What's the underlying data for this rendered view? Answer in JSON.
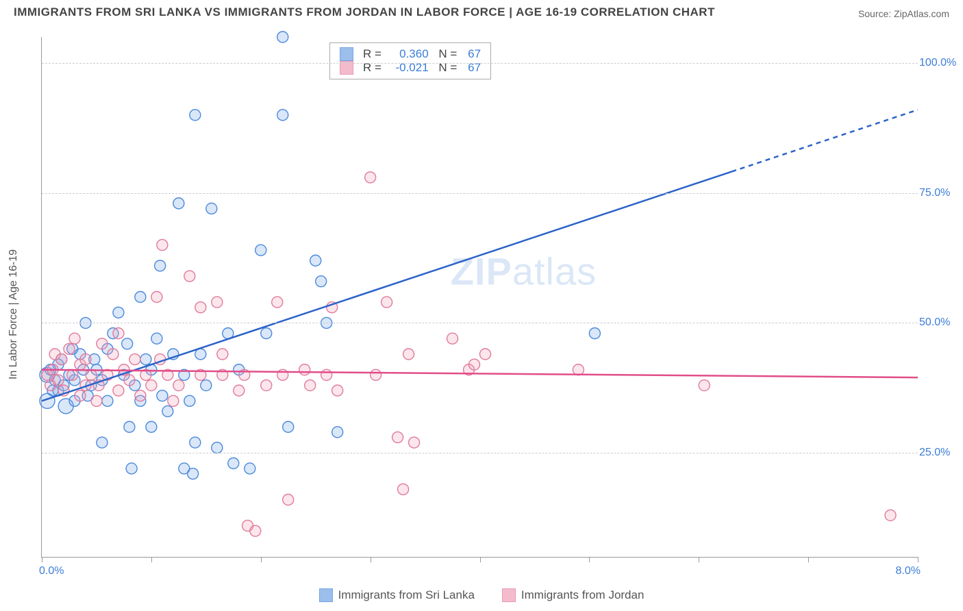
{
  "title": "IMMIGRANTS FROM SRI LANKA VS IMMIGRANTS FROM JORDAN IN LABOR FORCE | AGE 16-19 CORRELATION CHART",
  "source": "Source: ZipAtlas.com",
  "watermark": {
    "zip": "ZIP",
    "atlas": "atlas"
  },
  "y_axis_label": "In Labor Force | Age 16-19",
  "chart": {
    "type": "scatter-correlation",
    "background_color": "#ffffff",
    "grid_color": "#cccccc",
    "axis_color": "#999999",
    "xlim": [
      0.0,
      8.0
    ],
    "ylim": [
      5,
      105
    ],
    "y_ticks": [
      25.0,
      50.0,
      75.0,
      100.0
    ],
    "y_tick_labels": [
      "25.0%",
      "50.0%",
      "75.0%",
      "100.0%"
    ],
    "x_tick_labels": {
      "left": "0.0%",
      "right": "8.0%"
    },
    "x_minor_steps": 8,
    "tick_label_color": "#3b7dd8",
    "tick_fontsize": 16,
    "marker_radius": 8,
    "marker_radius_large": 11,
    "marker_fill_opacity": 0.28,
    "series": [
      {
        "id": "sri_lanka",
        "label": "Immigrants from Sri Lanka",
        "stroke": "#4a89dc",
        "fill": "#7aa9e8",
        "R": "0.360",
        "N": "67",
        "trend": {
          "x1": 0.0,
          "y1": 35.0,
          "x2": 8.0,
          "y2": 91.0,
          "dash_from_x": 6.3,
          "color": "#2b63c9",
          "width": 2.5
        },
        "points": [
          [
            0.05,
            35,
            1
          ],
          [
            0.05,
            40,
            1
          ],
          [
            0.08,
            41,
            0
          ],
          [
            0.1,
            37,
            0
          ],
          [
            0.12,
            39,
            0
          ],
          [
            0.15,
            42,
            0
          ],
          [
            0.15,
            37,
            0
          ],
          [
            0.18,
            43,
            0
          ],
          [
            0.2,
            38,
            0
          ],
          [
            0.22,
            34,
            1
          ],
          [
            0.25,
            40,
            0
          ],
          [
            0.28,
            45,
            0
          ],
          [
            0.3,
            39,
            0
          ],
          [
            0.3,
            35,
            0
          ],
          [
            0.35,
            44,
            0
          ],
          [
            0.38,
            41,
            0
          ],
          [
            0.4,
            50,
            0
          ],
          [
            0.42,
            36,
            0
          ],
          [
            0.45,
            38,
            0
          ],
          [
            0.48,
            43,
            0
          ],
          [
            0.5,
            41,
            0
          ],
          [
            0.55,
            39,
            0
          ],
          [
            0.55,
            27,
            0
          ],
          [
            0.6,
            35,
            0
          ],
          [
            0.6,
            45,
            0
          ],
          [
            0.65,
            48,
            0
          ],
          [
            0.7,
            52,
            0
          ],
          [
            0.75,
            40,
            0
          ],
          [
            0.78,
            46,
            0
          ],
          [
            0.8,
            30,
            0
          ],
          [
            0.82,
            22,
            0
          ],
          [
            0.85,
            38,
            0
          ],
          [
            0.9,
            35,
            0
          ],
          [
            0.9,
            55,
            0
          ],
          [
            0.95,
            43,
            0
          ],
          [
            1.0,
            41,
            0
          ],
          [
            1.0,
            30,
            0
          ],
          [
            1.05,
            47,
            0
          ],
          [
            1.08,
            61,
            0
          ],
          [
            1.1,
            36,
            0
          ],
          [
            1.15,
            33,
            0
          ],
          [
            1.2,
            44,
            0
          ],
          [
            1.25,
            73,
            0
          ],
          [
            1.3,
            40,
            0
          ],
          [
            1.3,
            22,
            0
          ],
          [
            1.35,
            35,
            0
          ],
          [
            1.38,
            21,
            0
          ],
          [
            1.4,
            90,
            0
          ],
          [
            1.4,
            27,
            0
          ],
          [
            1.45,
            44,
            0
          ],
          [
            1.5,
            38,
            0
          ],
          [
            1.55,
            72,
            0
          ],
          [
            1.6,
            26,
            0
          ],
          [
            1.7,
            48,
            0
          ],
          [
            1.75,
            23,
            0
          ],
          [
            1.8,
            41,
            0
          ],
          [
            1.9,
            22,
            0
          ],
          [
            2.0,
            64,
            0
          ],
          [
            2.05,
            48,
            0
          ],
          [
            2.2,
            105,
            0
          ],
          [
            2.2,
            90,
            0
          ],
          [
            2.25,
            30,
            0
          ],
          [
            2.5,
            62,
            0
          ],
          [
            2.55,
            58,
            0
          ],
          [
            2.6,
            50,
            0
          ],
          [
            2.7,
            29,
            0
          ],
          [
            5.05,
            48,
            0
          ]
        ]
      },
      {
        "id": "jordan",
        "label": "Immigrants from Jordan",
        "stroke": "#e17a9b",
        "fill": "#f0a5bc",
        "R": "-0.021",
        "N": "67",
        "trend": {
          "x1": 0.0,
          "y1": 41.0,
          "x2": 8.0,
          "y2": 39.5,
          "dash_from_x": 99,
          "color": "#e14d88",
          "width": 2.5
        },
        "points": [
          [
            0.05,
            40,
            0
          ],
          [
            0.08,
            38,
            0
          ],
          [
            0.1,
            41,
            0
          ],
          [
            0.12,
            44,
            0
          ],
          [
            0.15,
            39,
            0
          ],
          [
            0.18,
            43,
            0
          ],
          [
            0.2,
            37,
            0
          ],
          [
            0.25,
            45,
            0
          ],
          [
            0.28,
            40,
            0
          ],
          [
            0.3,
            47,
            0
          ],
          [
            0.35,
            42,
            0
          ],
          [
            0.35,
            36,
            0
          ],
          [
            0.4,
            38,
            0
          ],
          [
            0.4,
            43,
            0
          ],
          [
            0.45,
            40,
            0
          ],
          [
            0.5,
            35,
            0
          ],
          [
            0.52,
            38,
            0
          ],
          [
            0.55,
            46,
            0
          ],
          [
            0.6,
            40,
            0
          ],
          [
            0.65,
            44,
            0
          ],
          [
            0.7,
            48,
            0
          ],
          [
            0.7,
            37,
            0
          ],
          [
            0.75,
            41,
            0
          ],
          [
            0.8,
            39,
            0
          ],
          [
            0.85,
            43,
            0
          ],
          [
            0.9,
            36,
            0
          ],
          [
            0.95,
            40,
            0
          ],
          [
            1.0,
            38,
            0
          ],
          [
            1.05,
            55,
            0
          ],
          [
            1.08,
            43,
            0
          ],
          [
            1.1,
            65,
            0
          ],
          [
            1.15,
            40,
            0
          ],
          [
            1.2,
            35,
            0
          ],
          [
            1.25,
            38,
            0
          ],
          [
            1.35,
            59,
            0
          ],
          [
            1.45,
            53,
            0
          ],
          [
            1.45,
            40,
            0
          ],
          [
            1.6,
            54,
            0
          ],
          [
            1.65,
            40,
            0
          ],
          [
            1.65,
            44,
            0
          ],
          [
            1.8,
            37,
            0
          ],
          [
            1.85,
            40,
            0
          ],
          [
            1.88,
            11,
            0
          ],
          [
            1.95,
            10,
            0
          ],
          [
            2.05,
            38,
            0
          ],
          [
            2.15,
            54,
            0
          ],
          [
            2.2,
            40,
            0
          ],
          [
            2.25,
            16,
            0
          ],
          [
            2.4,
            41,
            0
          ],
          [
            2.45,
            38,
            0
          ],
          [
            2.65,
            53,
            0
          ],
          [
            2.7,
            37,
            0
          ],
          [
            3.0,
            78,
            0
          ],
          [
            3.05,
            40,
            0
          ],
          [
            3.15,
            54,
            0
          ],
          [
            3.25,
            28,
            0
          ],
          [
            3.3,
            18,
            0
          ],
          [
            3.4,
            27,
            0
          ],
          [
            3.35,
            44,
            0
          ],
          [
            3.75,
            47,
            0
          ],
          [
            3.9,
            41,
            0
          ],
          [
            3.95,
            42,
            0
          ],
          [
            4.05,
            44,
            0
          ],
          [
            4.9,
            41,
            0
          ],
          [
            6.05,
            38,
            0
          ],
          [
            7.75,
            13,
            0
          ],
          [
            2.6,
            40,
            0
          ]
        ]
      }
    ]
  },
  "legend_box": {
    "r_label": "R  =",
    "n_label": "N  ="
  },
  "bottom_legend": {
    "items": [
      {
        "ref": "sri_lanka"
      },
      {
        "ref": "jordan"
      }
    ]
  }
}
